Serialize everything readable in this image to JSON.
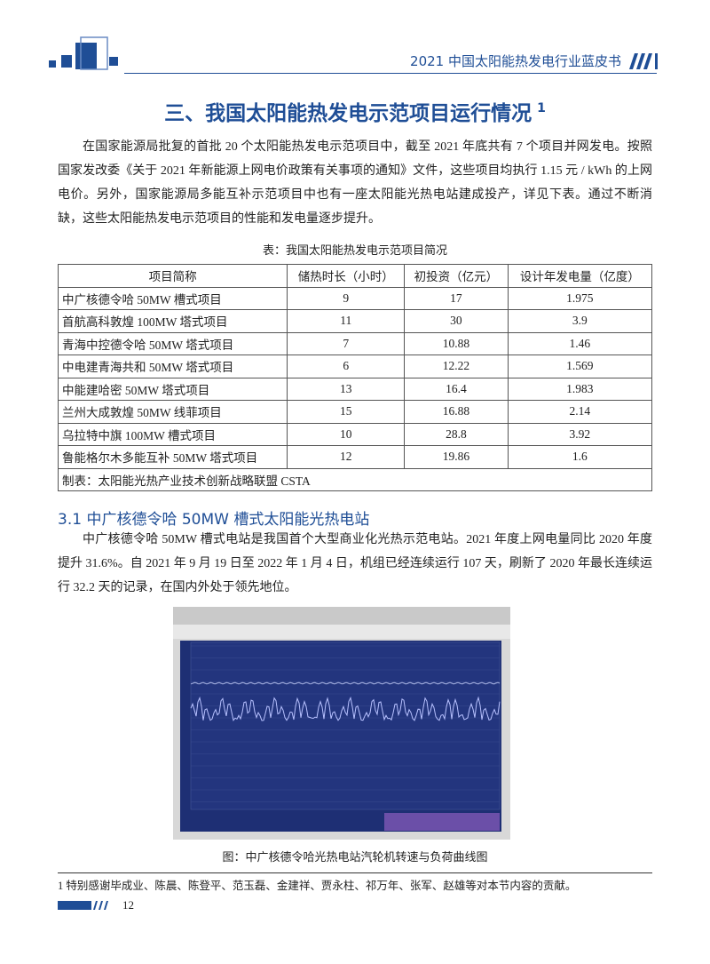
{
  "header": {
    "title": "2021 中国太阳能热发电行业蓝皮书"
  },
  "section": {
    "title": "三、我国太阳能热发电示范项目运行情况",
    "footnote_mark": "1"
  },
  "paragraphs": [
    "在国家能源局批复的首批 20 个太阳能热发电示范项目中，截至 2021 年底共有 7 个项目并网发电。按照国家发改委《关于 2021 年新能源上网电价政策有关事项的通知》文件，这些项目均执行 1.15 元 / kWh 的上网电价。另外，国家能源局多能互补示范项目中也有一座太阳能光热电站建成投产，详见下表。通过不断消缺，这些太阳能热发电示范项目的性能和发电量逐步提升。",
    "中广核德令哈 50MW 槽式电站是我国首个大型商业化光热示范电站。2021 年度上网电量同比 2020 年度提升 31.6%。自 2021 年 9 月 19 日至 2022 年 1 月 4 日，机组已经连续运行 107 天，刷新了 2020 年最长连续运行 32.2 天的记录，在国内外处于领先地位。"
  ],
  "table": {
    "caption": "表：我国太阳能热发电示范项目简况",
    "columns": [
      "项目简称",
      "储热时长（小时）",
      "初投资（亿元）",
      "设计年发电量（亿度）"
    ],
    "rows": [
      [
        "中广核德令哈 50MW 槽式项目",
        "9",
        "17",
        "1.975"
      ],
      [
        "首航高科敦煌 100MW 塔式项目",
        "11",
        "30",
        "3.9"
      ],
      [
        "青海中控德令哈 50MW 塔式项目",
        "7",
        "10.88",
        "1.46"
      ],
      [
        "中电建青海共和 50MW 塔式项目",
        "6",
        "12.22",
        "1.569"
      ],
      [
        "中能建哈密 50MW 塔式项目",
        "13",
        "16.4",
        "1.983"
      ],
      [
        "兰州大成敦煌 50MW 线菲项目",
        "15",
        "16.88",
        "2.14"
      ],
      [
        "乌拉特中旗 100MW 槽式项目",
        "10",
        "28.8",
        "3.92"
      ],
      [
        "鲁能格尔木多能互补 50MW 塔式项目",
        "12",
        "19.86",
        "1.6"
      ]
    ],
    "note": "制表：太阳能光热产业技术创新战略联盟 CSTA"
  },
  "subsection": {
    "title": "3.1 中广核德令哈 50MW 槽式太阳能光热电站"
  },
  "figure": {
    "caption": "图：中广核德令哈光热电站汽轮机转速与负荷曲线图"
  },
  "footnote": "1 特别感谢毕成业、陈晨、陈登平、范玉磊、金建祥、贾永柱、祁万年、张军、赵雄等对本节内容的贡献。",
  "page_number": "12"
}
